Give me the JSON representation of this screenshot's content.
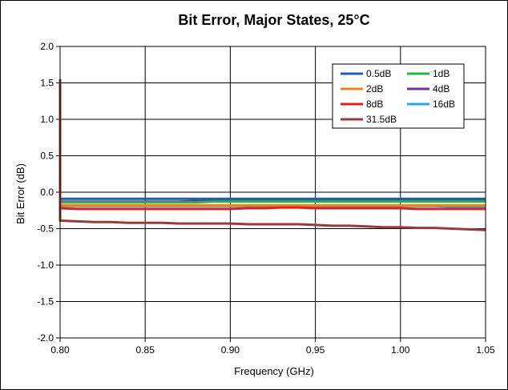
{
  "chart_data": {
    "type": "line",
    "title": "Bit Error, Major States, 25°C",
    "xlabel": "Frequency (GHz)",
    "ylabel": "Bit Error (dB)",
    "xlim": [
      0.8,
      1.05
    ],
    "ylim": [
      -2.0,
      2.0
    ],
    "x_ticks": [
      "0.80",
      "0.85",
      "0.90",
      "0.95",
      "1.00",
      "1.05"
    ],
    "y_ticks": [
      "2.0",
      "1.5",
      "1.0",
      "0.5",
      "0.0",
      "-0.5",
      "-1.0",
      "-1.5",
      "-2.0"
    ],
    "grid": true,
    "legend_position": "top-right",
    "x": [
      0.8,
      0.81,
      0.82,
      0.83,
      0.84,
      0.85,
      0.86,
      0.87,
      0.88,
      0.89,
      0.9,
      0.91,
      0.92,
      0.93,
      0.94,
      0.95,
      0.96,
      0.97,
      0.98,
      0.99,
      1.0,
      1.01,
      1.02,
      1.03,
      1.04,
      1.05
    ],
    "series": [
      {
        "name": "0.5dB",
        "color": "#1f5fa6",
        "values": [
          -0.09,
          -0.09,
          -0.09,
          -0.09,
          -0.09,
          -0.09,
          -0.09,
          -0.09,
          -0.09,
          -0.09,
          -0.09,
          -0.09,
          -0.09,
          -0.09,
          -0.09,
          -0.09,
          -0.09,
          -0.09,
          -0.09,
          -0.09,
          -0.09,
          -0.09,
          -0.09,
          -0.09,
          -0.09,
          -0.09
        ]
      },
      {
        "name": "1dB",
        "color": "#2eb34a",
        "values": [
          -0.14,
          -0.14,
          -0.14,
          -0.14,
          -0.14,
          -0.14,
          -0.14,
          -0.14,
          -0.14,
          -0.13,
          -0.13,
          -0.13,
          -0.13,
          -0.13,
          -0.13,
          -0.13,
          -0.13,
          -0.13,
          -0.13,
          -0.13,
          -0.13,
          -0.13,
          -0.13,
          -0.13,
          -0.13,
          -0.13
        ]
      },
      {
        "name": "2dB",
        "color": "#f0821e",
        "values": [
          -0.18,
          -0.18,
          -0.18,
          -0.18,
          -0.18,
          -0.18,
          -0.18,
          -0.18,
          -0.18,
          -0.18,
          -0.18,
          -0.18,
          -0.18,
          -0.18,
          -0.18,
          -0.18,
          -0.18,
          -0.18,
          -0.18,
          -0.18,
          -0.18,
          -0.18,
          -0.18,
          -0.18,
          -0.18,
          -0.18
        ]
      },
      {
        "name": "4dB",
        "color": "#7030a0",
        "values": [
          -0.13,
          -0.13,
          -0.13,
          -0.13,
          -0.13,
          -0.13,
          -0.13,
          -0.13,
          -0.12,
          -0.12,
          -0.12,
          -0.12,
          -0.12,
          -0.12,
          -0.12,
          -0.12,
          -0.12,
          -0.12,
          -0.12,
          -0.12,
          -0.12,
          -0.12,
          -0.12,
          -0.12,
          -0.12,
          -0.12
        ]
      },
      {
        "name": "8dB",
        "color": "#e0201b",
        "values": [
          -0.22,
          -0.23,
          -0.23,
          -0.23,
          -0.23,
          -0.23,
          -0.23,
          -0.23,
          -0.23,
          -0.23,
          -0.23,
          -0.22,
          -0.22,
          -0.21,
          -0.21,
          -0.22,
          -0.22,
          -0.22,
          -0.22,
          -0.22,
          -0.22,
          -0.23,
          -0.23,
          -0.23,
          -0.23,
          -0.23
        ]
      },
      {
        "name": "16dB",
        "color": "#29a9de",
        "values": [
          -0.19,
          -0.19,
          -0.19,
          -0.19,
          -0.19,
          -0.19,
          -0.19,
          -0.19,
          -0.19,
          -0.19,
          -0.19,
          -0.19,
          -0.19,
          -0.19,
          -0.19,
          -0.19,
          -0.19,
          -0.19,
          -0.19,
          -0.19,
          -0.19,
          -0.19,
          -0.19,
          -0.2,
          -0.2,
          -0.2
        ]
      },
      {
        "name": "31.5dB",
        "color": "#9b3a3a",
        "values": [
          -0.39,
          -0.4,
          -0.41,
          -0.41,
          -0.42,
          -0.42,
          -0.42,
          -0.43,
          -0.43,
          -0.43,
          -0.43,
          -0.44,
          -0.44,
          -0.44,
          -0.44,
          -0.45,
          -0.46,
          -0.46,
          -0.47,
          -0.48,
          -0.48,
          -0.49,
          -0.49,
          -0.5,
          -0.51,
          -0.52
        ]
      }
    ],
    "spike_series": "31.5dB",
    "spike_start_value": 1.55
  }
}
